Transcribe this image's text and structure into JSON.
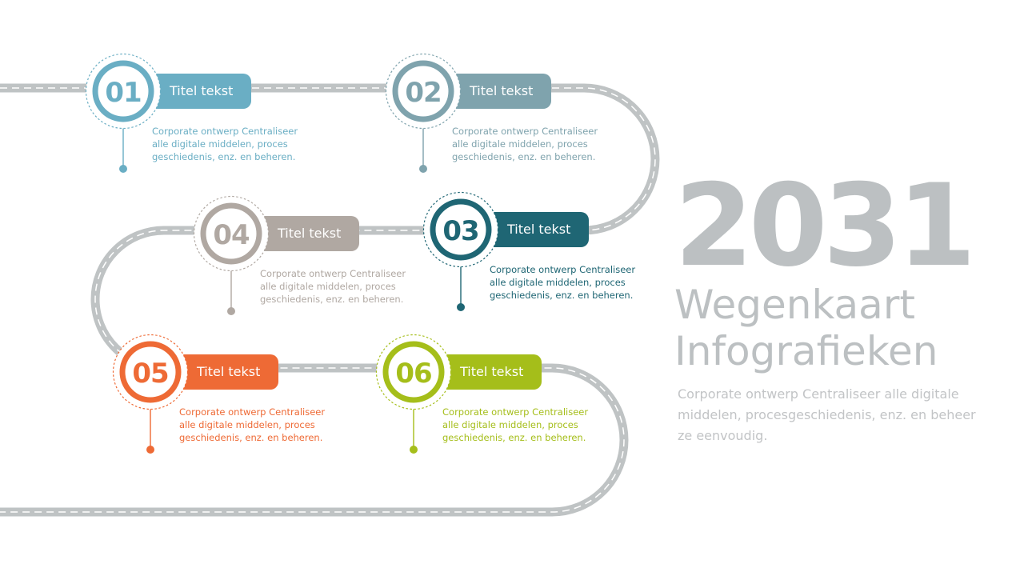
{
  "road_color": "#bfc3c4",
  "milestones": [
    {
      "number": "01",
      "title": "Titel tekst",
      "text": "Corporate ontwerp Centraliseer alle digitale middelen, proces geschiedenis, enz. en beheren.",
      "color": "#6aaec4"
    },
    {
      "number": "02",
      "title": "Titel tekst",
      "text": "Corporate ontwerp Centraliseer alle digitale middelen, proces geschiedenis, enz. en beheren.",
      "color": "#7fa3ad"
    },
    {
      "number": "03",
      "title": "Titel tekst",
      "text": "Corporate ontwerp Centraliseer alle digitale middelen, proces geschiedenis, enz. en beheren.",
      "color": "#1f6674"
    },
    {
      "number": "04",
      "title": "Titel tekst",
      "text": "Corporate ontwerp Centraliseer alle digitale middelen, proces geschiedenis, enz. en beheren.",
      "color": "#b0a8a2"
    },
    {
      "number": "05",
      "title": "Titel tekst",
      "text": "Corporate ontwerp Centraliseer alle digitale middelen, proces geschiedenis, enz. en beheren.",
      "color": "#ee6a35"
    },
    {
      "number": "06",
      "title": "Titel tekst",
      "text": "Corporate ontwerp Centraliseer alle digitale middelen, proces geschiedenis, enz. en beheren.",
      "color": "#a5be1a"
    }
  ],
  "heading": {
    "year": "2031",
    "title_line1": "Wegenkaart",
    "title_line2": "Infografieken",
    "subtitle": "Corporate ontwerp Centraliseer alle digitale middelen, procesgeschiedenis, enz. en beheer ze eenvoudig."
  }
}
